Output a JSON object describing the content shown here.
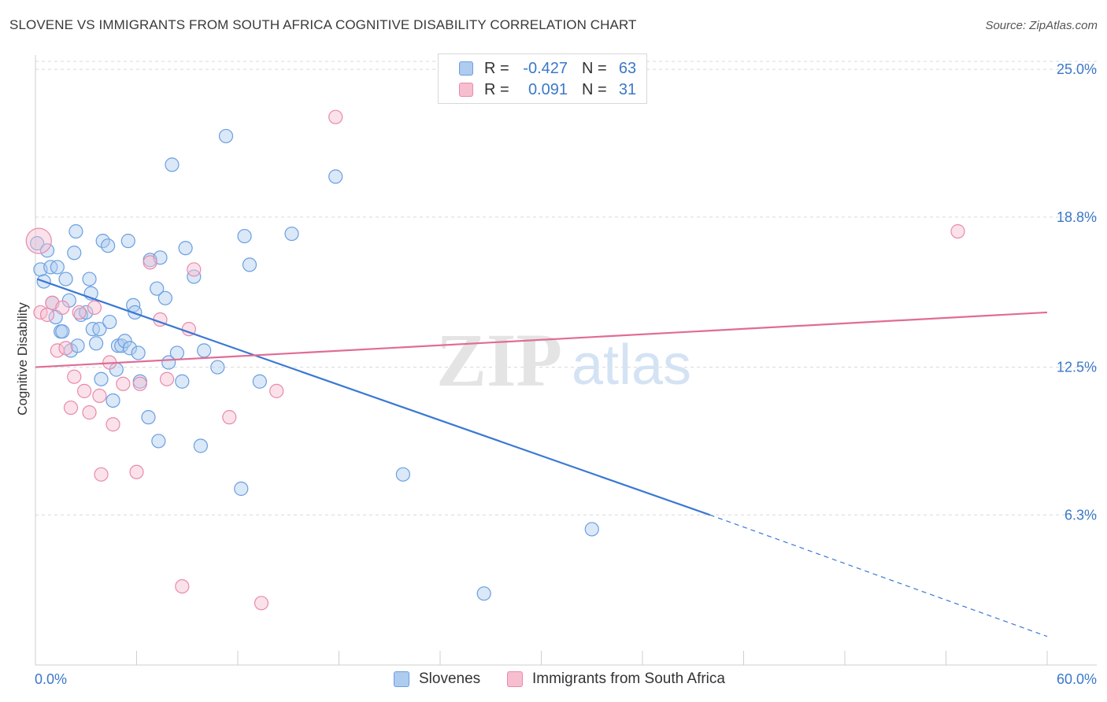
{
  "header": {
    "title": "SLOVENE VS IMMIGRANTS FROM SOUTH AFRICA COGNITIVE DISABILITY CORRELATION CHART",
    "source": "Source: ZipAtlas.com"
  },
  "watermark": {
    "zip": "ZIP",
    "atlas": "atlas"
  },
  "colors": {
    "blue": "#3a78d4",
    "blue_fill": "#aecbf0",
    "pink": "#e06c96",
    "pink_fill": "#f7bed0",
    "axis_text": "#3b78c8",
    "grid": "#d9d9d9"
  },
  "legend_top": {
    "rows": [
      {
        "series": "Slovenes",
        "r_label": "R =",
        "r_value": "-0.427",
        "n_label": "N =",
        "n_value": "63"
      },
      {
        "series": "Immigrants from South Africa",
        "r_label": "R =",
        "r_value": "0.091",
        "n_label": "N =",
        "n_value": "31"
      }
    ]
  },
  "legend_bottom": {
    "items": [
      "Slovenes",
      "Immigrants from South Africa"
    ]
  },
  "chart_data": {
    "type": "scatter",
    "title": "SLOVENE VS IMMIGRANTS FROM SOUTH AFRICA COGNITIVE DISABILITY CORRELATION CHART",
    "xlabel": "",
    "ylabel": "Cognitive Disability",
    "xlim": [
      0,
      60
    ],
    "ylim": [
      0,
      25.6
    ],
    "x_tick_labels": [
      "0.0%",
      "60.0%"
    ],
    "y_ticks": [
      6.3,
      12.5,
      18.8,
      25.0
    ],
    "y_tick_labels": [
      "6.3%",
      "12.5%",
      "18.8%",
      "25.0%"
    ],
    "grid": true,
    "legend_position": "top-center",
    "series": [
      {
        "name": "Slovenes",
        "color": "#3a78d4",
        "points": [
          [
            0.1,
            17.7
          ],
          [
            0.3,
            16.6
          ],
          [
            0.5,
            16.1
          ],
          [
            0.7,
            17.4
          ],
          [
            0.9,
            16.7
          ],
          [
            1.0,
            15.2
          ],
          [
            1.2,
            14.6
          ],
          [
            1.3,
            16.7
          ],
          [
            1.5,
            14.0
          ],
          [
            1.6,
            14.0
          ],
          [
            1.8,
            16.2
          ],
          [
            2.0,
            15.3
          ],
          [
            2.1,
            13.2
          ],
          [
            2.3,
            17.3
          ],
          [
            2.4,
            18.2
          ],
          [
            2.5,
            13.4
          ],
          [
            2.7,
            14.7
          ],
          [
            3.0,
            14.8
          ],
          [
            3.2,
            16.2
          ],
          [
            3.3,
            15.6
          ],
          [
            3.4,
            14.1
          ],
          [
            3.6,
            13.5
          ],
          [
            3.8,
            14.1
          ],
          [
            3.9,
            12.0
          ],
          [
            4.0,
            17.8
          ],
          [
            4.3,
            17.6
          ],
          [
            4.4,
            14.4
          ],
          [
            4.6,
            11.1
          ],
          [
            4.8,
            12.4
          ],
          [
            4.9,
            13.4
          ],
          [
            5.1,
            13.4
          ],
          [
            5.3,
            13.6
          ],
          [
            5.5,
            17.8
          ],
          [
            5.6,
            13.3
          ],
          [
            5.8,
            15.1
          ],
          [
            5.9,
            14.8
          ],
          [
            6.1,
            13.1
          ],
          [
            6.2,
            11.9
          ],
          [
            6.7,
            10.4
          ],
          [
            6.8,
            17.0
          ],
          [
            7.2,
            15.8
          ],
          [
            7.3,
            9.4
          ],
          [
            7.4,
            17.1
          ],
          [
            7.7,
            15.4
          ],
          [
            7.9,
            12.7
          ],
          [
            8.1,
            21.0
          ],
          [
            8.4,
            13.1
          ],
          [
            8.7,
            11.9
          ],
          [
            8.9,
            17.5
          ],
          [
            9.4,
            16.3
          ],
          [
            9.8,
            9.2
          ],
          [
            10.0,
            13.2
          ],
          [
            10.8,
            12.5
          ],
          [
            11.3,
            22.2
          ],
          [
            12.2,
            7.4
          ],
          [
            12.4,
            18.0
          ],
          [
            12.7,
            16.8
          ],
          [
            13.3,
            11.9
          ],
          [
            15.2,
            18.1
          ],
          [
            17.8,
            20.5
          ],
          [
            21.8,
            8.0
          ],
          [
            26.6,
            3.0
          ],
          [
            33.0,
            5.7
          ]
        ],
        "trend": {
          "x0": 0.1,
          "y0": 16.2,
          "x1": 40.0,
          "y1": 6.3,
          "dashed_x1": 60.0,
          "dashed_y1": 1.2
        }
      },
      {
        "name": "Immigrants from South Africa",
        "color": "#e06c96",
        "points": [
          [
            0.2,
            17.8
          ],
          [
            0.3,
            14.8
          ],
          [
            0.7,
            14.7
          ],
          [
            1.0,
            15.2
          ],
          [
            1.3,
            13.2
          ],
          [
            1.6,
            15.0
          ],
          [
            1.8,
            13.3
          ],
          [
            2.1,
            10.8
          ],
          [
            2.3,
            12.1
          ],
          [
            2.6,
            14.8
          ],
          [
            2.9,
            11.5
          ],
          [
            3.2,
            10.6
          ],
          [
            3.5,
            15.0
          ],
          [
            3.8,
            11.3
          ],
          [
            3.9,
            8.0
          ],
          [
            4.4,
            12.7
          ],
          [
            4.6,
            10.1
          ],
          [
            5.2,
            11.8
          ],
          [
            6.0,
            8.1
          ],
          [
            6.2,
            11.8
          ],
          [
            6.8,
            16.9
          ],
          [
            7.4,
            14.5
          ],
          [
            7.8,
            12.0
          ],
          [
            8.7,
            3.3
          ],
          [
            9.1,
            14.1
          ],
          [
            9.4,
            16.6
          ],
          [
            11.5,
            10.4
          ],
          [
            13.4,
            2.6
          ],
          [
            14.3,
            11.5
          ],
          [
            17.8,
            23.0
          ],
          [
            54.7,
            18.2
          ]
        ],
        "trend": {
          "x0": 0.0,
          "y0": 12.5,
          "x1": 60.0,
          "y1": 14.8
        }
      }
    ]
  }
}
